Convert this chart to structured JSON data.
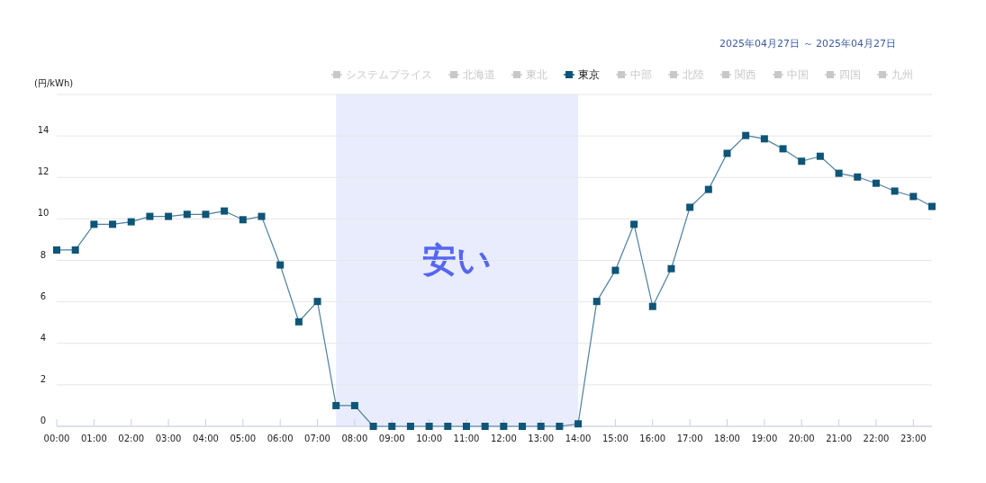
{
  "chart_data": {
    "type": "line",
    "ylabel": "(円/kWh)",
    "annotations": [
      "2025年04月27日 ～ 2025年04月27日"
    ],
    "x": [
      0,
      0.5,
      1,
      1.5,
      2,
      2.5,
      3,
      3.5,
      4,
      4.5,
      5,
      5.5,
      6,
      6.5,
      7,
      7.5,
      8,
      8.5,
      9,
      9.5,
      10,
      10.5,
      11,
      11.5,
      12,
      12.5,
      13,
      13.5,
      14,
      14.5,
      15,
      15.5,
      16,
      16.5,
      17,
      17.5,
      18,
      18.5,
      19,
      19.5,
      20,
      20.5,
      21,
      21.5,
      22,
      22.5,
      23,
      23.5
    ],
    "xlim": [
      0,
      23.5
    ],
    "xticks": [
      {
        "value": 0,
        "label": "00:00"
      },
      {
        "value": 1,
        "label": "01:00"
      },
      {
        "value": 2,
        "label": "02:00"
      },
      {
        "value": 3,
        "label": "03:00"
      },
      {
        "value": 4,
        "label": "04:00"
      },
      {
        "value": 5,
        "label": "05:00"
      },
      {
        "value": 6,
        "label": "06:00"
      },
      {
        "value": 7,
        "label": "07:00"
      },
      {
        "value": 8,
        "label": "08:00"
      },
      {
        "value": 9,
        "label": "09:00"
      },
      {
        "value": 10,
        "label": "10:00"
      },
      {
        "value": 11,
        "label": "11:00"
      },
      {
        "value": 12,
        "label": "12:00"
      },
      {
        "value": 13,
        "label": "13:00"
      },
      {
        "value": 14,
        "label": "14:00"
      },
      {
        "value": 15,
        "label": "15:00"
      },
      {
        "value": 16,
        "label": "16:00"
      },
      {
        "value": 17,
        "label": "17:00"
      },
      {
        "value": 18,
        "label": "18:00"
      },
      {
        "value": 19,
        "label": "19:00"
      },
      {
        "value": 20,
        "label": "20:00"
      },
      {
        "value": 21,
        "label": "21:00"
      },
      {
        "value": 22,
        "label": "22:00"
      },
      {
        "value": 23,
        "label": "23:00"
      }
    ],
    "series": [
      {
        "name": "システムプライス",
        "color": "#c8c8c8",
        "values": [
          null,
          null,
          null,
          null,
          null,
          null,
          null,
          null,
          null,
          null,
          null,
          null,
          null,
          null,
          null,
          null,
          null,
          null,
          null,
          null,
          null,
          null,
          null,
          null,
          null,
          null,
          null,
          null,
          null,
          null,
          null,
          null,
          null,
          null,
          null,
          null,
          null,
          null,
          null,
          null,
          null,
          null,
          null,
          null,
          null,
          null,
          null,
          null
        ]
      },
      {
        "name": "北海道",
        "color": "#c8c8c8",
        "values": [
          null,
          null,
          null,
          null,
          null,
          null,
          null,
          null,
          null,
          null,
          null,
          null,
          null,
          null,
          null,
          null,
          null,
          null,
          null,
          null,
          null,
          null,
          null,
          null,
          null,
          null,
          null,
          null,
          null,
          null,
          null,
          null,
          null,
          null,
          null,
          null,
          null,
          null,
          null,
          null,
          null,
          null,
          null,
          null,
          null,
          null,
          null,
          null
        ]
      },
      {
        "name": "東北",
        "color": "#c8c8c8",
        "values": [
          null,
          null,
          null,
          null,
          null,
          null,
          null,
          null,
          null,
          null,
          null,
          null,
          null,
          null,
          null,
          null,
          null,
          null,
          null,
          null,
          null,
          null,
          null,
          null,
          null,
          null,
          null,
          null,
          null,
          null,
          null,
          null,
          null,
          null,
          null,
          null,
          null,
          null,
          null,
          null,
          null,
          null,
          null,
          null,
          null,
          null,
          null,
          null
        ]
      },
      {
        "name": "東京",
        "color": "#0e5577",
        "values": [
          8.5,
          8.5,
          9.74,
          9.74,
          9.86,
          10.12,
          10.12,
          10.22,
          10.22,
          10.38,
          9.96,
          10.12,
          7.78,
          5.04,
          6.02,
          1.0,
          1.0,
          0,
          0,
          0,
          0,
          0,
          0,
          0,
          0,
          0,
          0,
          0,
          0.12,
          6.02,
          7.52,
          9.74,
          5.78,
          7.6,
          10.56,
          11.42,
          13.16,
          14.02,
          13.86,
          13.38,
          12.78,
          13.02,
          12.2,
          12.02,
          11.72,
          11.34,
          11.08,
          10.6
        ]
      },
      {
        "name": "中部",
        "color": "#c8c8c8",
        "values": [
          null,
          null,
          null,
          null,
          null,
          null,
          null,
          null,
          null,
          null,
          null,
          null,
          null,
          null,
          null,
          null,
          null,
          null,
          null,
          null,
          null,
          null,
          null,
          null,
          null,
          null,
          null,
          null,
          null,
          null,
          null,
          null,
          null,
          null,
          null,
          null,
          null,
          null,
          null,
          null,
          null,
          null,
          null,
          null,
          null,
          null,
          null,
          null
        ]
      },
      {
        "name": "北陸",
        "color": "#c8c8c8",
        "values": [
          null,
          null,
          null,
          null,
          null,
          null,
          null,
          null,
          null,
          null,
          null,
          null,
          null,
          null,
          null,
          null,
          null,
          null,
          null,
          null,
          null,
          null,
          null,
          null,
          null,
          null,
          null,
          null,
          null,
          null,
          null,
          null,
          null,
          null,
          null,
          null,
          null,
          null,
          null,
          null,
          null,
          null,
          null,
          null,
          null,
          null,
          null,
          null
        ]
      },
      {
        "name": "関西",
        "color": "#c8c8c8",
        "values": [
          null,
          null,
          null,
          null,
          null,
          null,
          null,
          null,
          null,
          null,
          null,
          null,
          null,
          null,
          null,
          null,
          null,
          null,
          null,
          null,
          null,
          null,
          null,
          null,
          null,
          null,
          null,
          null,
          null,
          null,
          null,
          null,
          null,
          null,
          null,
          null,
          null,
          null,
          null,
          null,
          null,
          null,
          null,
          null,
          null,
          null,
          null,
          null
        ]
      },
      {
        "name": "中国",
        "color": "#c8c8c8",
        "values": [
          null,
          null,
          null,
          null,
          null,
          null,
          null,
          null,
          null,
          null,
          null,
          null,
          null,
          null,
          null,
          null,
          null,
          null,
          null,
          null,
          null,
          null,
          null,
          null,
          null,
          null,
          null,
          null,
          null,
          null,
          null,
          null,
          null,
          null,
          null,
          null,
          null,
          null,
          null,
          null,
          null,
          null,
          null,
          null,
          null,
          null,
          null,
          null
        ]
      },
      {
        "name": "四国",
        "color": "#c8c8c8",
        "values": [
          null,
          null,
          null,
          null,
          null,
          null,
          null,
          null,
          null,
          null,
          null,
          null,
          null,
          null,
          null,
          null,
          null,
          null,
          null,
          null,
          null,
          null,
          null,
          null,
          null,
          null,
          null,
          null,
          null,
          null,
          null,
          null,
          null,
          null,
          null,
          null,
          null,
          null,
          null,
          null,
          null,
          null,
          null,
          null,
          null,
          null,
          null,
          null
        ]
      },
      {
        "name": "九州",
        "color": "#c8c8c8",
        "values": [
          null,
          null,
          null,
          null,
          null,
          null,
          null,
          null,
          null,
          null,
          null,
          null,
          null,
          null,
          null,
          null,
          null,
          null,
          null,
          null,
          null,
          null,
          null,
          null,
          null,
          null,
          null,
          null,
          null,
          null,
          null,
          null,
          null,
          null,
          null,
          null,
          null,
          null,
          null,
          null,
          null,
          null,
          null,
          null,
          null,
          null,
          null,
          null
        ]
      }
    ],
    "ylim": [
      0,
      16
    ],
    "yticks": [
      0,
      2,
      4,
      6,
      8,
      10,
      12,
      14,
      {
        "value": 16,
        "label": null
      }
    ],
    "grid": "y",
    "legend": "top right",
    "marker": "square",
    "line_style": "solid",
    "bands": [
      {
        "axis": "x",
        "from": 7.5,
        "to": 14,
        "label": "安い",
        "color": "#e8ecfd"
      }
    ]
  }
}
